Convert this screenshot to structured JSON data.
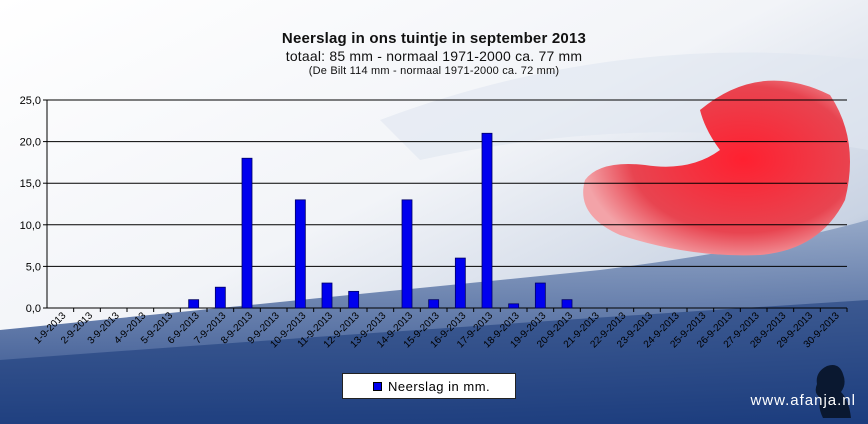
{
  "titles": {
    "main": "Neerslag in ons tuintje in september 2013",
    "sub": "totaal: 85 mm  -  normaal 1971-2000 ca. 77 mm",
    "note": "(De Bilt 114 mm - normaal 1971-2000 ca. 72 mm)"
  },
  "legend_label": "Neerslag in mm.",
  "watermark": "www.afanja.nl",
  "colors": {
    "bar": "#0000ee",
    "bar_stroke": "#000066",
    "gridline": "#000000"
  },
  "chart_data": {
    "type": "bar",
    "title": "Neerslag in ons tuintje in september 2013",
    "categories": [
      "1-9-2013",
      "2-9-2013",
      "3-9-2013",
      "4-9-2013",
      "5-9-2013",
      "6-9-2013",
      "7-9-2013",
      "8-9-2013",
      "9-9-2013",
      "10-9-2013",
      "11-9-2013",
      "12-9-2013",
      "13-9-2013",
      "14-9-2013",
      "15-9-2013",
      "16-9-2013",
      "17-9-2013",
      "18-9-2013",
      "19-9-2013",
      "20-9-2013",
      "21-9-2013",
      "22-9-2013",
      "23-9-2013",
      "24-9-2013",
      "25-9-2013",
      "26-9-2013",
      "27-9-2013",
      "28-9-2013",
      "29-9-2013",
      "30-9-2013"
    ],
    "series": [
      {
        "name": "Neerslag in mm.",
        "values": [
          0,
          0,
          0,
          0,
          0,
          1,
          2.5,
          18,
          0,
          13,
          3,
          2,
          0,
          13,
          1,
          6,
          21,
          0.5,
          3,
          1,
          0,
          0,
          0,
          0,
          0,
          0,
          0,
          0,
          0,
          0
        ]
      }
    ],
    "ylim": [
      0,
      25
    ],
    "yticks": [
      "0,0",
      "5,0",
      "10,0",
      "15,0",
      "20,0",
      "25,0"
    ],
    "ytick_values": [
      0,
      5,
      10,
      15,
      20,
      25
    ],
    "grid": true,
    "legend_position": "bottom"
  }
}
